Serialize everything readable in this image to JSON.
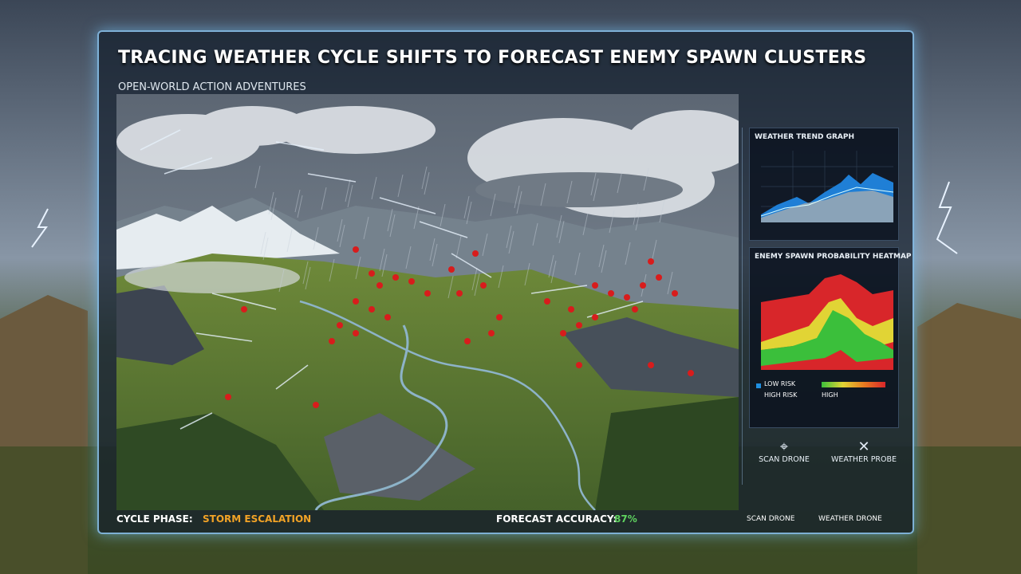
{
  "header": {
    "title": "TRACING WEATHER CYCLE SHIFTS TO FORECAST ENEMY SPAWN CLUSTERS",
    "subtitle": "OPEN-WORLD ACTION ADVENTURES"
  },
  "side_panel": {
    "weather_graph": {
      "title": "WEATHER TREND GRAPH"
    },
    "heatmap": {
      "title": "ENEMY SPAWN PROBABILITY HEATMAP",
      "legend": [
        "LOW RISK",
        "HIGH RISK",
        "HIGH"
      ]
    },
    "tools": [
      "SCAN DRONE",
      "WEATHER PROBE"
    ]
  },
  "status_bar": {
    "phase_label": "CYCLE PHASE:",
    "phase_value": "STORM ESCALATION",
    "accuracy_label": "FORECAST ACCURACY:",
    "accuracy_value": "87%",
    "drones": [
      "SCAN DRONE",
      "WEATHER DRONE"
    ]
  }
}
